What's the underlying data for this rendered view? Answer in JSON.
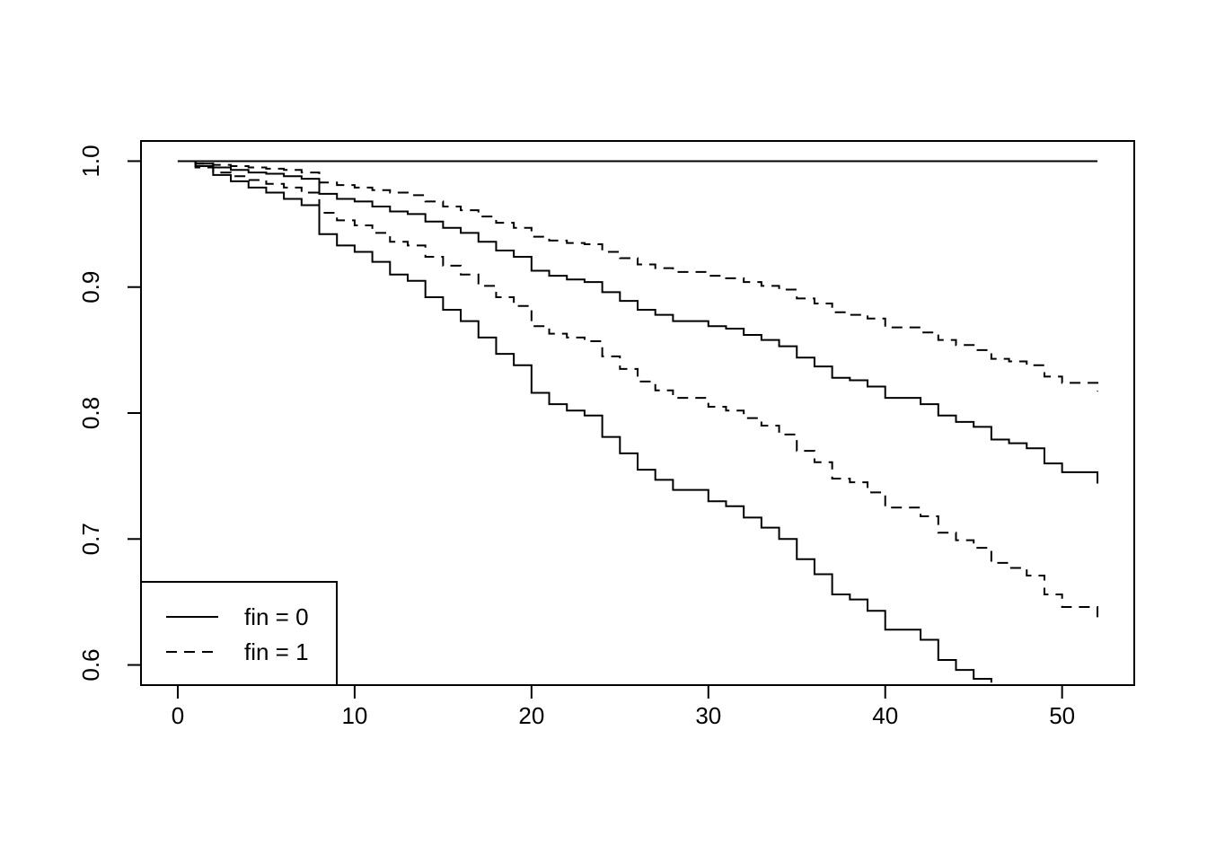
{
  "chart_data": {
    "type": "step",
    "x": [
      0,
      1,
      2,
      3,
      4,
      5,
      6,
      7,
      8,
      9,
      10,
      11,
      12,
      13,
      14,
      15,
      16,
      17,
      18,
      19,
      20,
      21,
      22,
      23,
      24,
      25,
      26,
      27,
      28,
      29,
      30,
      31,
      32,
      33,
      34,
      35,
      36,
      37,
      38,
      39,
      40,
      41,
      42,
      43,
      44,
      45,
      46,
      47,
      48,
      49,
      50,
      51,
      52
    ],
    "series": [
      {
        "color": "#000000",
        "linetype": "solid",
        "values": [
          1,
          1,
          1,
          1,
          1,
          1,
          1,
          1,
          1,
          1,
          1,
          1,
          1,
          1,
          1,
          1,
          1,
          1,
          1,
          1,
          1,
          1,
          1,
          1,
          1,
          1,
          1,
          1,
          1,
          1,
          1,
          1,
          1,
          1,
          1,
          1,
          1,
          1,
          1,
          1,
          1,
          1,
          1,
          1,
          1,
          1,
          1,
          1,
          1,
          1,
          1,
          1,
          1
        ]
      },
      {
        "color": "#000000",
        "linetype": "solid",
        "values": [
          1,
          0.998,
          0.995,
          0.993,
          0.991,
          0.99,
          0.988,
          0.986,
          0.974,
          0.97,
          0.968,
          0.964,
          0.96,
          0.958,
          0.952,
          0.947,
          0.943,
          0.936,
          0.929,
          0.924,
          0.913,
          0.909,
          0.906,
          0.904,
          0.896,
          0.889,
          0.882,
          0.878,
          0.873,
          0.873,
          0.869,
          0.867,
          0.862,
          0.858,
          0.853,
          0.844,
          0.837,
          0.828,
          0.826,
          0.821,
          0.812,
          0.812,
          0.807,
          0.798,
          0.793,
          0.789,
          0.779,
          0.776,
          0.772,
          0.76,
          0.753,
          0.753,
          0.744
        ]
      },
      {
        "color": "#000000",
        "linetype": "solid",
        "values": [
          1,
          0.996,
          0.989,
          0.984,
          0.979,
          0.975,
          0.97,
          0.965,
          0.942,
          0.933,
          0.928,
          0.92,
          0.91,
          0.905,
          0.892,
          0.882,
          0.873,
          0.86,
          0.847,
          0.838,
          0.816,
          0.807,
          0.802,
          0.798,
          0.781,
          0.768,
          0.755,
          0.747,
          0.739,
          0.739,
          0.73,
          0.726,
          0.717,
          0.709,
          0.7,
          0.684,
          0.672,
          0.656,
          0.652,
          0.643,
          0.628,
          0.628,
          0.62,
          0.604,
          0.596,
          0.589,
          0.586,
          null,
          null,
          null,
          null,
          null,
          null
        ]
      },
      {
        "color": "#000000",
        "linetype": "dashed",
        "values": [
          1,
          0.998,
          0.997,
          0.996,
          0.995,
          0.994,
          0.993,
          0.991,
          0.983,
          0.981,
          0.979,
          0.977,
          0.975,
          0.973,
          0.968,
          0.964,
          0.961,
          0.956,
          0.951,
          0.947,
          0.94,
          0.937,
          0.935,
          0.934,
          0.928,
          0.923,
          0.918,
          0.915,
          0.912,
          0.912,
          0.909,
          0.907,
          0.904,
          0.901,
          0.898,
          0.891,
          0.887,
          0.88,
          0.878,
          0.875,
          0.868,
          0.868,
          0.864,
          0.858,
          0.854,
          0.85,
          0.843,
          0.841,
          0.838,
          0.829,
          0.824,
          0.824,
          0.817
        ]
      },
      {
        "color": "#000000",
        "linetype": "dashed",
        "values": [
          1,
          0.995,
          0.991,
          0.988,
          0.985,
          0.982,
          0.979,
          0.975,
          0.959,
          0.953,
          0.949,
          0.943,
          0.936,
          0.933,
          0.924,
          0.917,
          0.91,
          0.901,
          0.892,
          0.885,
          0.869,
          0.863,
          0.86,
          0.857,
          0.845,
          0.835,
          0.825,
          0.818,
          0.812,
          0.812,
          0.805,
          0.802,
          0.796,
          0.79,
          0.783,
          0.77,
          0.761,
          0.748,
          0.745,
          0.737,
          0.725,
          0.725,
          0.718,
          0.705,
          0.699,
          0.693,
          0.681,
          0.677,
          0.671,
          0.656,
          0.646,
          0.646,
          0.635
        ]
      }
    ],
    "legend": [
      {
        "label": "fin = 0",
        "linetype": "solid"
      },
      {
        "label": "fin = 1",
        "linetype": "dashed"
      }
    ],
    "legend_position": "bottomleft",
    "xlim": [
      -2.08,
      54.08
    ],
    "xticks": [
      0,
      10,
      20,
      30,
      40,
      50
    ],
    "ylim": [
      0.584,
      1.016
    ],
    "yticks": [
      0.6,
      0.7,
      0.8,
      0.9,
      {
        "value": 1,
        "label": "1.0"
      }
    ]
  }
}
